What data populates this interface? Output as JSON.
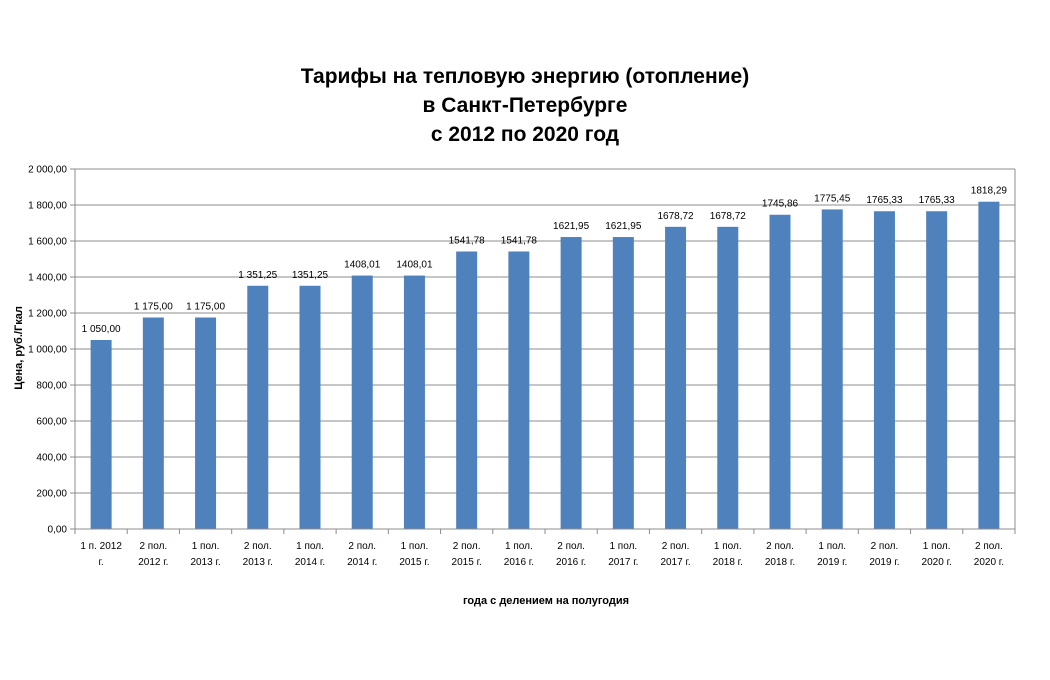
{
  "chart_data": {
    "type": "bar",
    "title_lines": [
      "Тарифы на тепловую энергию (отопление)",
      "в Санкт-Петербурге",
      "с 2012 по 2020 год"
    ],
    "xlabel": "года с делением на полугодия",
    "ylabel": "Цена, руб./Гкал",
    "ylim": [
      0,
      2000
    ],
    "y_ticks": [
      0,
      200,
      400,
      600,
      800,
      1000,
      1200,
      1400,
      1600,
      1800,
      2000
    ],
    "y_tick_labels": [
      "0,00",
      "200,00",
      "400,00",
      "600,00",
      "800,00",
      "1 000,00",
      "1 200,00",
      "1 400,00",
      "1 600,00",
      "1 800,00",
      "2 000,00"
    ],
    "grid": true,
    "bar_color": "#4F81BD",
    "categories": [
      [
        "1 п. 2012",
        "г."
      ],
      [
        "2 пол.",
        "2012 г."
      ],
      [
        "1 пол.",
        "2013 г."
      ],
      [
        "2 пол.",
        "2013 г."
      ],
      [
        "1 пол.",
        "2014 г."
      ],
      [
        "2 пол.",
        "2014 г."
      ],
      [
        "1 пол.",
        "2015 г."
      ],
      [
        "2 пол.",
        "2015 г."
      ],
      [
        "1 пол.",
        "2016 г."
      ],
      [
        "2 пол.",
        "2016 г."
      ],
      [
        "1 пол.",
        "2017 г."
      ],
      [
        "2 пол.",
        "2017 г."
      ],
      [
        "1 пол.",
        "2018 г."
      ],
      [
        "2 пол.",
        "2018 г."
      ],
      [
        "1 пол.",
        "2019 г."
      ],
      [
        "2 пол.",
        "2019 г."
      ],
      [
        "1 пол.",
        "2020 г."
      ],
      [
        "2 пол.",
        "2020 г."
      ]
    ],
    "values": [
      1050.0,
      1175.0,
      1175.0,
      1351.25,
      1351.25,
      1408.01,
      1408.01,
      1541.78,
      1541.78,
      1621.95,
      1621.95,
      1678.72,
      1678.72,
      1745.86,
      1775.45,
      1765.33,
      1765.33,
      1818.29
    ],
    "data_labels": [
      "1 050,00",
      "1 175,00",
      "1 175,00",
      "1 351,25",
      "1351,25",
      "1408,01",
      "1408,01",
      "1541,78",
      "1541,78",
      "1621,95",
      "1621,95",
      "1678,72",
      "1678,72",
      "1745,86",
      "1775,45",
      "1765,33",
      "1765,33",
      "1818,29"
    ]
  }
}
